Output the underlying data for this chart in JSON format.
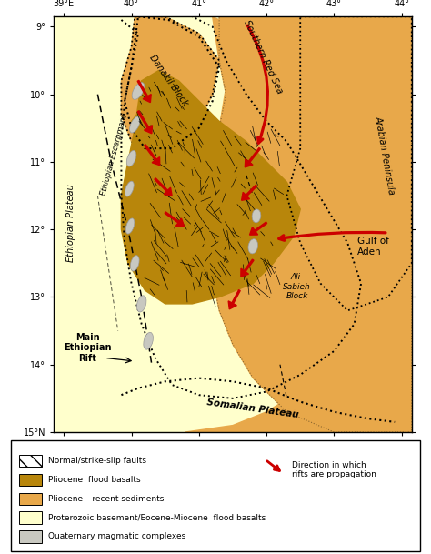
{
  "xlim": [
    38.85,
    44.15
  ],
  "ylim": [
    9.0,
    15.15
  ],
  "xticks": [
    39,
    40,
    41,
    42,
    43,
    44
  ],
  "yticks": [
    9,
    10,
    11,
    12,
    13,
    14,
    15
  ],
  "xlabel_top": [
    "39°E",
    "40°",
    "41°",
    "42°",
    "43°",
    "44°"
  ],
  "ylabel_left": [
    "15°N",
    "14°",
    "13°",
    "12°",
    "11°",
    "10°",
    "9°"
  ],
  "bg_color": "#FFFFCC",
  "pliocene_basalt_color": "#B8860B",
  "pliocene_sediment_color": "#E8A84A",
  "arrow_color": "#CC0000",
  "quat_color": "#C8C8C0"
}
